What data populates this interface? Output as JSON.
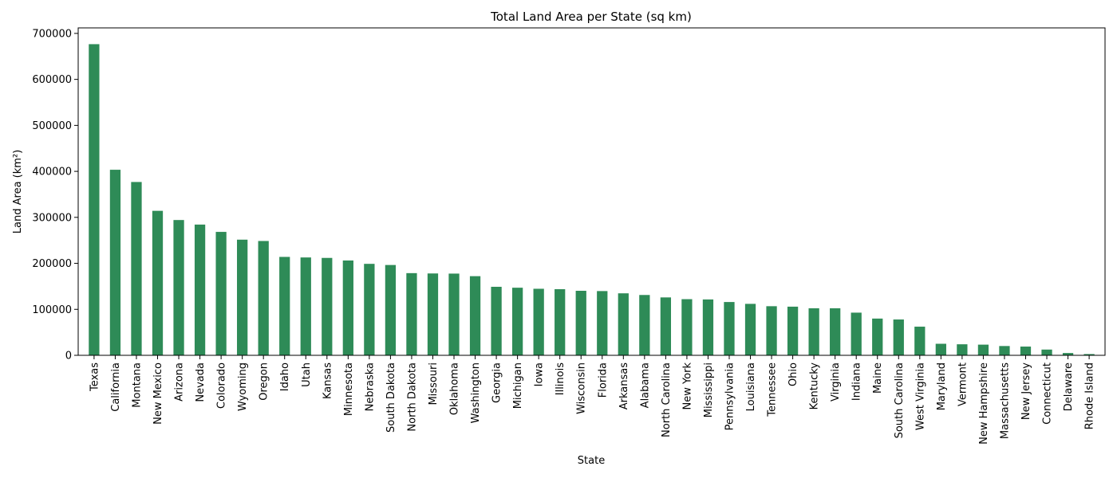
{
  "chart_data": {
    "type": "bar",
    "title": "Total Land Area per State (sq km)",
    "xlabel": "State",
    "ylabel": "Land Area (km²)",
    "ylim": [
      0,
      712000
    ],
    "yticks": [
      0,
      100000,
      200000,
      300000,
      400000,
      500000,
      600000,
      700000
    ],
    "bar_color": "#2e8b57",
    "categories": [
      "Texas",
      "California",
      "Montana",
      "New Mexico",
      "Arizona",
      "Nevada",
      "Colorado",
      "Wyoming",
      "Oregon",
      "Idaho",
      "Utah",
      "Kansas",
      "Minnesota",
      "Nebraska",
      "South Dakota",
      "North Dakota",
      "Missouri",
      "Oklahoma",
      "Washington",
      "Georgia",
      "Michigan",
      "Iowa",
      "Illinois",
      "Wisconsin",
      "Florida",
      "Arkansas",
      "Alabama",
      "North Carolina",
      "New York",
      "Mississippi",
      "Pennsylvania",
      "Louisiana",
      "Tennessee",
      "Ohio",
      "Kentucky",
      "Virginia",
      "Indiana",
      "Maine",
      "South Carolina",
      "West Virginia",
      "Maryland",
      "Vermont",
      "New Hampshire",
      "Massachusetts",
      "New Jersey",
      "Connecticut",
      "Delaware",
      "Rhode Island"
    ],
    "values": [
      676600,
      403500,
      376900,
      314200,
      294200,
      284300,
      268400,
      251500,
      248600,
      214000,
      212800,
      211800,
      206200,
      198900,
      196400,
      178700,
      178000,
      177700,
      172100,
      149000,
      147000,
      144700,
      143800,
      140300,
      139700,
      134800,
      131200,
      125900,
      122100,
      121500,
      115900,
      111900,
      106800,
      105800,
      102300,
      102300,
      92800,
      79900,
      77900,
      62300,
      25100,
      24000,
      23200,
      20200,
      19000,
      12500,
      5000,
      2700
    ]
  }
}
